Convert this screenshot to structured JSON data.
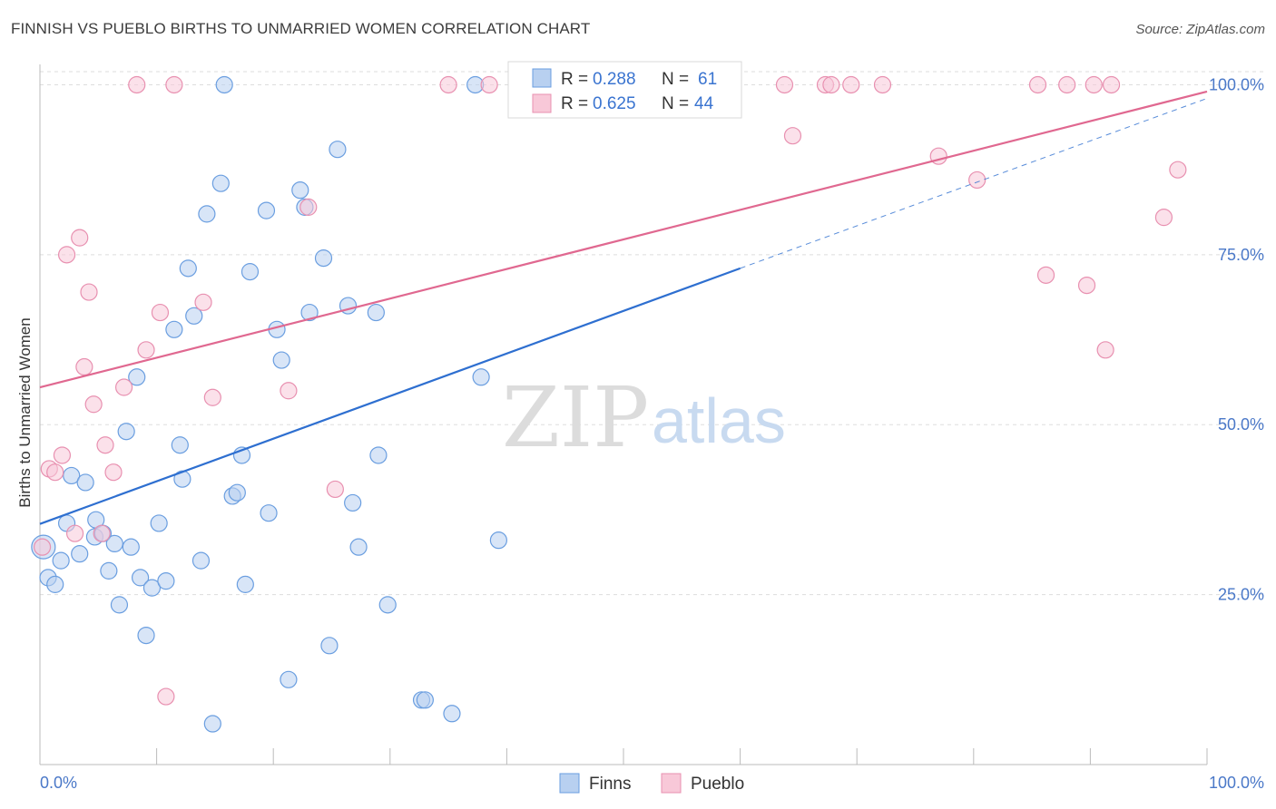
{
  "header": {
    "title": "FINNISH VS PUEBLO BIRTHS TO UNMARRIED WOMEN CORRELATION CHART",
    "source": "Source: ZipAtlas.com"
  },
  "watermark": {
    "zip": "ZIP",
    "atlas": "atlas"
  },
  "colors": {
    "finns_fill": "#b8d0f0",
    "finns_stroke": "#6a9ee0",
    "finns_line": "#2e6fd0",
    "pueblo_fill": "#f8c8d8",
    "pueblo_stroke": "#e890b0",
    "pueblo_line": "#e06890",
    "axis_text": "#4a78c8",
    "grid": "#dddddd"
  },
  "legend": {
    "rows": [
      {
        "r_label": "R = ",
        "r_value": "0.288",
        "n_label": "N = ",
        "n_value": "61",
        "series": "finns"
      },
      {
        "r_label": "R = ",
        "r_value": "0.625",
        "n_label": "N = ",
        "n_value": "44",
        "series": "pueblo"
      }
    ],
    "bottom": [
      {
        "label": "Finns",
        "series": "finns"
      },
      {
        "label": "Pueblo",
        "series": "pueblo"
      }
    ]
  },
  "chart_data": {
    "type": "scatter",
    "title": "FINNISH VS PUEBLO BIRTHS TO UNMARRIED WOMEN CORRELATION CHART",
    "xlabel": "",
    "ylabel": "Births to Unmarried Women",
    "xlim": [
      0,
      100
    ],
    "ylim": [
      0,
      103
    ],
    "x_tick_labels": [
      "0.0%",
      "100.0%"
    ],
    "y_ticks": [
      25,
      50,
      75,
      100
    ],
    "y_tick_labels": [
      "25.0%",
      "50.0%",
      "75.0%",
      "100.0%"
    ],
    "grid": true,
    "legend_position": "top-center",
    "series": [
      {
        "name": "Finns",
        "r": 0.288,
        "n": 61,
        "trend": {
          "x0": 0,
          "y0": 35.4,
          "x1": 60,
          "y1": 73.0,
          "dash_to_x": 100,
          "dash_to_y": 98.0
        },
        "points": [
          [
            0.3,
            32
          ],
          [
            0.7,
            27.5
          ],
          [
            1.3,
            26.5
          ],
          [
            1.8,
            30
          ],
          [
            2.3,
            35.5
          ],
          [
            2.7,
            42.5
          ],
          [
            3.4,
            31
          ],
          [
            3.9,
            41.5
          ],
          [
            4.7,
            33.5
          ],
          [
            4.8,
            36
          ],
          [
            5.4,
            34
          ],
          [
            5.9,
            28.5
          ],
          [
            6.4,
            32.5
          ],
          [
            6.8,
            23.5
          ],
          [
            7.4,
            49
          ],
          [
            7.8,
            32
          ],
          [
            8.3,
            57
          ],
          [
            8.6,
            27.5
          ],
          [
            9.1,
            19
          ],
          [
            9.6,
            26
          ],
          [
            10.2,
            35.5
          ],
          [
            10.8,
            27
          ],
          [
            11.5,
            64
          ],
          [
            12.0,
            47
          ],
          [
            12.2,
            42
          ],
          [
            12.7,
            73
          ],
          [
            13.2,
            66
          ],
          [
            13.8,
            30
          ],
          [
            14.3,
            81
          ],
          [
            14.8,
            6
          ],
          [
            15.5,
            85.5
          ],
          [
            15.8,
            100
          ],
          [
            16.5,
            39.5
          ],
          [
            16.9,
            40
          ],
          [
            17.3,
            45.5
          ],
          [
            17.6,
            26.5
          ],
          [
            18.0,
            72.5
          ],
          [
            19.4,
            81.5
          ],
          [
            19.6,
            37
          ],
          [
            20.3,
            64
          ],
          [
            20.7,
            59.5
          ],
          [
            21.3,
            12.5
          ],
          [
            22.3,
            84.5
          ],
          [
            22.7,
            82
          ],
          [
            23.1,
            66.5
          ],
          [
            24.3,
            74.5
          ],
          [
            24.8,
            17.5
          ],
          [
            25.5,
            90.5
          ],
          [
            26.4,
            67.5
          ],
          [
            26.8,
            38.5
          ],
          [
            27.3,
            32
          ],
          [
            28.8,
            66.5
          ],
          [
            29.0,
            45.5
          ],
          [
            29.8,
            23.5
          ],
          [
            32.7,
            9.5
          ],
          [
            33.0,
            9.5
          ],
          [
            35.3,
            7.5
          ],
          [
            37.3,
            100
          ],
          [
            37.8,
            57
          ],
          [
            39.3,
            33
          ],
          [
            57.5,
            100
          ]
        ]
      },
      {
        "name": "Pueblo",
        "r": 0.625,
        "n": 44,
        "trend": {
          "x0": 0,
          "y0": 55.5,
          "x1": 100,
          "y1": 99.0
        },
        "points": [
          [
            0.2,
            32
          ],
          [
            0.8,
            43.5
          ],
          [
            1.3,
            43
          ],
          [
            1.9,
            45.5
          ],
          [
            2.3,
            75
          ],
          [
            3.0,
            34
          ],
          [
            3.4,
            77.5
          ],
          [
            3.8,
            58.5
          ],
          [
            4.2,
            69.5
          ],
          [
            4.6,
            53
          ],
          [
            5.3,
            34
          ],
          [
            5.6,
            47
          ],
          [
            6.3,
            43
          ],
          [
            7.2,
            55.5
          ],
          [
            8.3,
            100
          ],
          [
            9.1,
            61
          ],
          [
            10.3,
            66.5
          ],
          [
            10.8,
            10
          ],
          [
            11.5,
            100
          ],
          [
            14.0,
            68
          ],
          [
            14.8,
            54
          ],
          [
            21.3,
            55
          ],
          [
            23.0,
            82
          ],
          [
            25.3,
            40.5
          ],
          [
            35.0,
            100
          ],
          [
            38.5,
            100
          ],
          [
            41.0,
            100
          ],
          [
            63.8,
            100
          ],
          [
            64.5,
            92.5
          ],
          [
            67.3,
            100
          ],
          [
            67.8,
            100
          ],
          [
            69.5,
            100
          ],
          [
            72.2,
            100
          ],
          [
            77.0,
            89.5
          ],
          [
            80.3,
            86
          ],
          [
            85.5,
            100
          ],
          [
            86.2,
            72
          ],
          [
            88.0,
            100
          ],
          [
            89.7,
            70.5
          ],
          [
            90.3,
            100
          ],
          [
            91.3,
            61
          ],
          [
            91.8,
            100
          ],
          [
            96.3,
            80.5
          ],
          [
            97.5,
            87.5
          ]
        ]
      }
    ]
  }
}
